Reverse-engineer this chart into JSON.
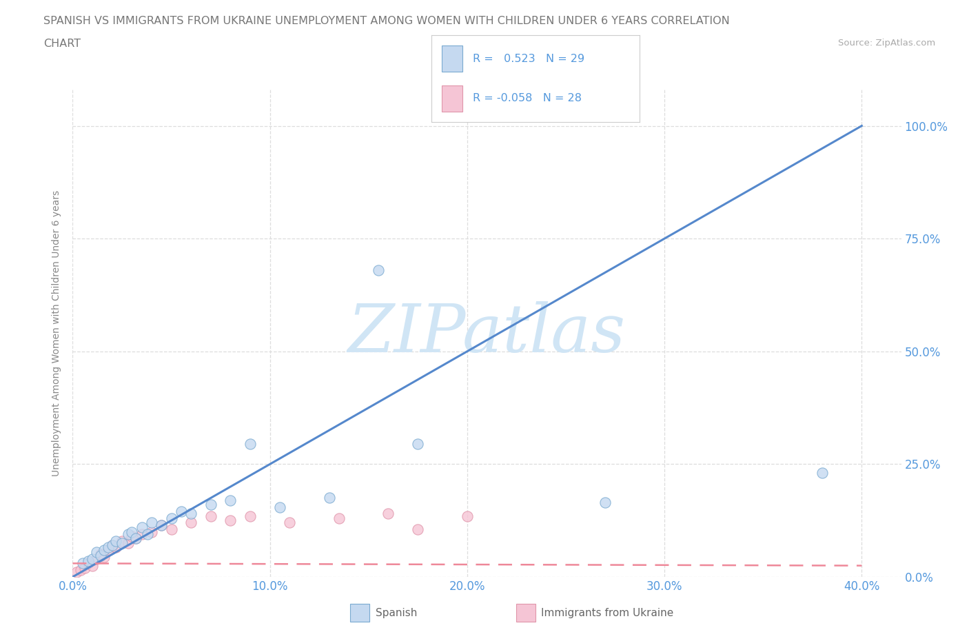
{
  "title_line1": "SPANISH VS IMMIGRANTS FROM UKRAINE UNEMPLOYMENT AMONG WOMEN WITH CHILDREN UNDER 6 YEARS CORRELATION",
  "title_line2": "CHART",
  "source": "Source: ZipAtlas.com",
  "ylabel": "Unemployment Among Women with Children Under 6 years",
  "xlim": [
    0.0,
    0.42
  ],
  "ylim": [
    0.0,
    1.08
  ],
  "ytick_labels": [
    "0.0%",
    "25.0%",
    "50.0%",
    "75.0%",
    "100.0%"
  ],
  "ytick_values": [
    0.0,
    0.25,
    0.5,
    0.75,
    1.0
  ],
  "xtick_labels": [
    "0.0%",
    "10.0%",
    "20.0%",
    "30.0%",
    "40.0%"
  ],
  "xtick_values": [
    0.0,
    0.1,
    0.2,
    0.3,
    0.4
  ],
  "spanish_fill": "#c5d9f0",
  "spanish_edge": "#7aaad0",
  "ukraine_fill": "#f5c5d5",
  "ukraine_edge": "#e095aa",
  "spanish_line_color": "#5588cc",
  "ukraine_line_color": "#ee8899",
  "tick_label_color": "#5599dd",
  "R_spanish": 0.523,
  "N_spanish": 29,
  "R_ukraine": -0.058,
  "N_ukraine": 28,
  "watermark_color": "#d0e5f5",
  "background_color": "#ffffff",
  "grid_color": "#dddddd",
  "title_color": "#777777",
  "source_color": "#aaaaaa",
  "ylabel_color": "#888888",
  "legend_border_color": "#cccccc",
  "spanish_trend_x": [
    0.0,
    0.4
  ],
  "spanish_trend_y": [
    0.0,
    1.0
  ],
  "ukraine_trend_x": [
    0.0,
    0.4
  ],
  "ukraine_trend_y": [
    0.03,
    0.025
  ],
  "spanish_x": [
    0.005,
    0.008,
    0.01,
    0.012,
    0.014,
    0.016,
    0.018,
    0.02,
    0.022,
    0.025,
    0.028,
    0.03,
    0.032,
    0.035,
    0.038,
    0.04,
    0.045,
    0.05,
    0.055,
    0.06,
    0.07,
    0.08,
    0.09,
    0.105,
    0.13,
    0.155,
    0.175,
    0.27,
    0.38
  ],
  "spanish_y": [
    0.03,
    0.035,
    0.04,
    0.055,
    0.048,
    0.06,
    0.065,
    0.07,
    0.08,
    0.075,
    0.095,
    0.1,
    0.085,
    0.11,
    0.095,
    0.12,
    0.115,
    0.13,
    0.145,
    0.14,
    0.16,
    0.17,
    0.295,
    0.155,
    0.175,
    0.68,
    0.295,
    0.165,
    0.23
  ],
  "ukraine_x": [
    0.002,
    0.004,
    0.006,
    0.008,
    0.01,
    0.012,
    0.014,
    0.016,
    0.018,
    0.02,
    0.022,
    0.025,
    0.028,
    0.03,
    0.032,
    0.035,
    0.04,
    0.045,
    0.05,
    0.06,
    0.07,
    0.08,
    0.09,
    0.11,
    0.135,
    0.16,
    0.175,
    0.2
  ],
  "ukraine_y": [
    0.01,
    0.015,
    0.02,
    0.03,
    0.025,
    0.04,
    0.05,
    0.045,
    0.06,
    0.07,
    0.065,
    0.08,
    0.075,
    0.09,
    0.085,
    0.095,
    0.1,
    0.115,
    0.105,
    0.12,
    0.135,
    0.125,
    0.135,
    0.12,
    0.13,
    0.14,
    0.105,
    0.135
  ],
  "title_fontsize": 11.5,
  "tick_fontsize": 12,
  "ylabel_fontsize": 10
}
